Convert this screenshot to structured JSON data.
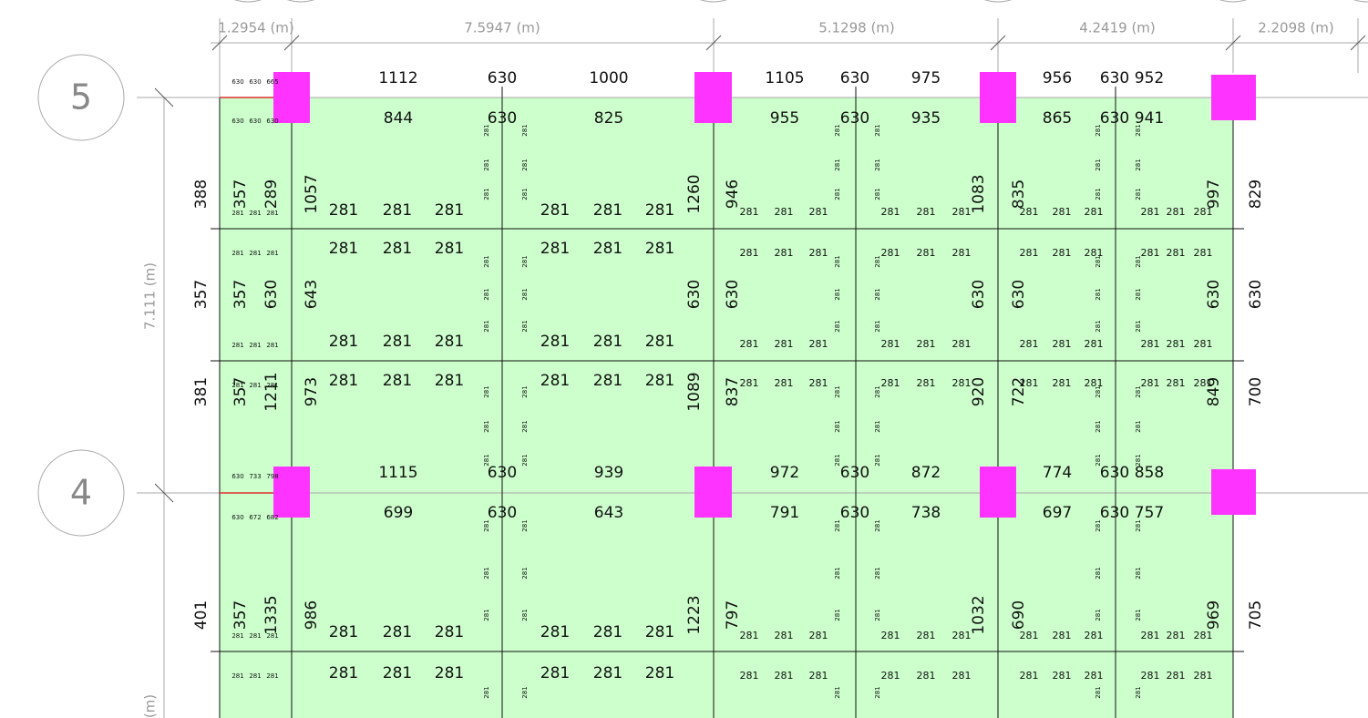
{
  "dimensions": [
    "1.2954 (m)",
    "7.5947 (m)",
    "5.1298 (m)",
    "4.2419 (m)",
    "2.2098 (m)"
  ],
  "grid_bubbles": [
    "5",
    "4"
  ],
  "vertical_dimensions": [
    "7.111 (m)",
    "(m)"
  ],
  "row_labels": [
    [
      "1112",
      "630",
      "1000",
      "1105",
      "630",
      "975",
      "956",
      "630",
      "952"
    ],
    [
      "844",
      "630",
      "825",
      "955",
      "630",
      "935",
      "865",
      "630",
      "941"
    ],
    [
      "1115",
      "630",
      "939",
      "972",
      "630",
      "872",
      "774",
      "630",
      "858"
    ],
    [
      "699",
      "630",
      "643",
      "791",
      "630",
      "738",
      "697",
      "630",
      "757"
    ]
  ],
  "vertical_labels": [
    [
      "388",
      "357",
      "289",
      "1057",
      "1260",
      "946",
      "1083",
      "835",
      "997",
      "829"
    ],
    [
      "357",
      "357",
      "630",
      "643",
      "630",
      "630",
      "630",
      "630",
      "630",
      "630"
    ],
    [
      "381",
      "357",
      "1211",
      "973",
      "1089",
      "837",
      "920",
      "722",
      "849",
      "700"
    ],
    [
      "401",
      "357",
      "1335",
      "986",
      "1223",
      "797",
      "1032",
      "690",
      "969",
      "705"
    ]
  ],
  "rebar_rows": [
    [
      "281",
      "281",
      "281",
      "281",
      "281",
      "281"
    ],
    [
      "281",
      "281",
      "281",
      "281",
      "281",
      "281"
    ],
    [
      "281",
      "281",
      "281",
      "281",
      "281",
      "281"
    ],
    [
      "281",
      "281",
      "281",
      "281",
      "281",
      "281"
    ],
    [
      "281",
      "281",
      "281",
      "281",
      "281",
      "281"
    ],
    [
      "281",
      "281",
      "281",
      "281",
      "281",
      "281"
    ]
  ],
  "small_labels": [
    [
      "281",
      "281",
      "281",
      "281",
      "281",
      "281",
      "281",
      "281",
      "281",
      "281",
      "281",
      "281"
    ],
    [
      "281",
      "281",
      "281",
      "281",
      "281",
      "281",
      "281",
      "281",
      "281",
      "281",
      "281",
      "281"
    ],
    [
      "281",
      "281",
      "281",
      "281",
      "281",
      "281",
      "281",
      "281",
      "281",
      "281",
      "281",
      "281"
    ],
    [
      "281",
      "281",
      "281",
      "281",
      "281",
      "281",
      "281",
      "281",
      "281",
      "281",
      "281",
      "281"
    ],
    [
      "281",
      "281",
      "281",
      "281",
      "281",
      "281",
      "281",
      "281",
      "281",
      "281",
      "281",
      "281"
    ],
    [
      "281",
      "281",
      "281",
      "281",
      "281",
      "281",
      "281",
      "281",
      "281",
      "281",
      "281",
      "281"
    ]
  ],
  "left_small": [
    [
      "630",
      "630",
      "665"
    ],
    [
      "630",
      "630",
      "630"
    ],
    [
      "281",
      "281",
      "281"
    ],
    [
      "281",
      "281",
      "281"
    ],
    [
      "281",
      "281",
      "281"
    ],
    [
      "281",
      "281",
      "281"
    ],
    [
      "630",
      "733",
      "798"
    ],
    [
      "630",
      "672",
      "682"
    ],
    [
      "281",
      "281",
      "281"
    ],
    [
      "281",
      "281",
      "281"
    ]
  ],
  "beam_labels": [
    [
      "281",
      "281",
      "281",
      "281",
      "281",
      "281"
    ],
    [
      "281",
      "281",
      "281",
      "281",
      "281",
      "281"
    ],
    [
      "281",
      "281",
      "281",
      "281",
      "281",
      "281"
    ],
    [
      "281",
      "281",
      "281",
      "281",
      "281",
      "281"
    ],
    [
      "281",
      "281",
      "281",
      "281",
      "281",
      "281"
    ],
    [
      "281",
      "281",
      "281",
      "281",
      "281",
      "281"
    ],
    [
      "281",
      "281",
      "281",
      "281",
      "281",
      "281"
    ],
    [
      "281",
      "281",
      "281",
      "281",
      "281",
      "281"
    ],
    [
      "281",
      "281",
      "281",
      "281",
      "281",
      "281"
    ],
    [
      "281",
      "281",
      "281",
      "281",
      "281",
      "281"
    ],
    [
      "281",
      "281",
      "281",
      "281",
      "281",
      "281"
    ],
    [
      "281",
      "281",
      "281",
      "281",
      "281",
      "281"
    ],
    [
      "281",
      "281",
      "281",
      "281",
      "281",
      "281"
    ]
  ]
}
